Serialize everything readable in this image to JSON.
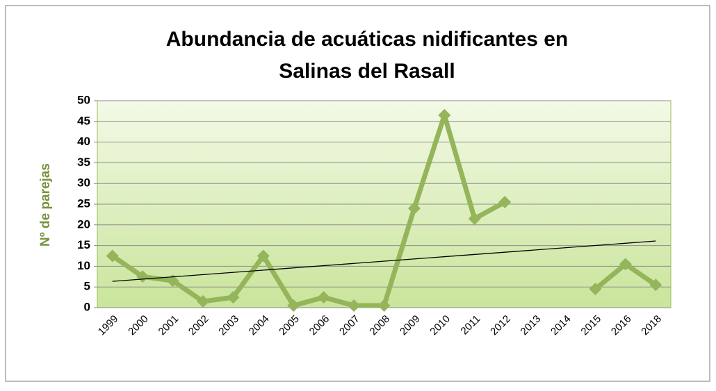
{
  "chart_data": {
    "type": "line",
    "title": [
      "Abundancia de acuáticas nidificantes en",
      "Salinas del Rasall"
    ],
    "ylabel": "Nº de parejas",
    "categories": [
      "1999",
      "2000",
      "2001",
      "2002",
      "2003",
      "2004",
      "2005",
      "2006",
      "2007",
      "2008",
      "2009",
      "2010",
      "2011",
      "2012",
      "2013",
      "2014",
      "2015",
      "2016",
      "2018"
    ],
    "series": [
      {
        "name": "Nº de parejas",
        "color": "#94b55a",
        "values": [
          12.5,
          7.5,
          6.5,
          1.5,
          2.5,
          12.5,
          0.5,
          2.5,
          0.5,
          0.5,
          24,
          46.5,
          21.5,
          25.5,
          null,
          null,
          4.5,
          10.5,
          5.5
        ]
      }
    ],
    "ylim": [
      0,
      50
    ],
    "yticks": [
      0,
      5,
      10,
      15,
      20,
      25,
      30,
      35,
      40,
      45,
      50
    ],
    "grid": true,
    "trendline": true
  }
}
